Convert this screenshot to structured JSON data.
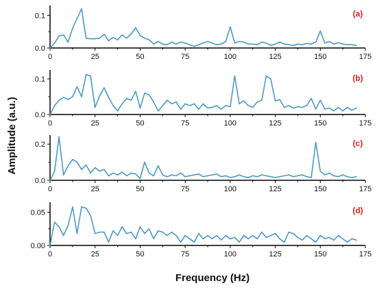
{
  "figure": {
    "xlabel": "Frequency (Hz)",
    "ylabel": "Amplitude (a.u.)",
    "line_color": "#4a98c9",
    "label_color": "#e02222",
    "axis_color": "#000000"
  },
  "chart_data": [
    {
      "type": "line",
      "label": "(a)",
      "xlim": [
        0,
        175
      ],
      "ylim": [
        0,
        0.13
      ],
      "xticks": [
        "0",
        "25",
        "50",
        "75",
        "100",
        "125",
        "150",
        "175"
      ],
      "yticks": [
        {
          "value": 0.0,
          "label": "0.0"
        },
        {
          "value": 0.1,
          "label": "0.1"
        }
      ],
      "series": [
        {
          "x": [
            0,
            2.5,
            5,
            7.5,
            10,
            12.5,
            15,
            17.5,
            20,
            22.5,
            25,
            27.5,
            30,
            32.5,
            35,
            37.5,
            40,
            42.5,
            45,
            47.5,
            50,
            52.5,
            55,
            57.5,
            60,
            62.5,
            65,
            67.5,
            70,
            72.5,
            75,
            77.5,
            80,
            82.5,
            85,
            87.5,
            90,
            92.5,
            95,
            97.5,
            100,
            102.5,
            105,
            107.5,
            110,
            112.5,
            115,
            117.5,
            120,
            122.5,
            125,
            127.5,
            130,
            132.5,
            135,
            137.5,
            140,
            142.5,
            145,
            147.5,
            150,
            152.5,
            155,
            157.5,
            160,
            162.5,
            165,
            167.5,
            170
          ],
          "y": [
            0.0,
            0.015,
            0.037,
            0.04,
            0.018,
            0.06,
            0.09,
            0.12,
            0.03,
            0.028,
            0.028,
            0.03,
            0.042,
            0.022,
            0.032,
            0.025,
            0.04,
            0.03,
            0.043,
            0.062,
            0.038,
            0.03,
            0.025,
            0.012,
            0.02,
            0.012,
            0.01,
            0.018,
            0.012,
            0.018,
            0.015,
            0.01,
            0.005,
            0.01,
            0.015,
            0.02,
            0.015,
            0.01,
            0.012,
            0.02,
            0.065,
            0.015,
            0.02,
            0.018,
            0.012,
            0.012,
            0.01,
            0.018,
            0.015,
            0.008,
            0.012,
            0.018,
            0.012,
            0.01,
            0.008,
            0.012,
            0.01,
            0.014,
            0.012,
            0.018,
            0.052,
            0.015,
            0.02,
            0.012,
            0.016,
            0.012,
            0.01,
            0.01,
            0.008
          ]
        }
      ]
    },
    {
      "type": "line",
      "label": "(b)",
      "xlim": [
        0,
        175
      ],
      "ylim": [
        0,
        0.125
      ],
      "xticks": [
        "0",
        "25",
        "50",
        "75",
        "100",
        "125",
        "150",
        "175"
      ],
      "yticks": [
        {
          "value": 0.0,
          "label": "0.0"
        },
        {
          "value": 0.1,
          "label": "0.1"
        }
      ],
      "series": [
        {
          "x": [
            0,
            2.5,
            5,
            7.5,
            10,
            12.5,
            15,
            17.5,
            20,
            22.5,
            25,
            27.5,
            30,
            32.5,
            35,
            37.5,
            40,
            42.5,
            45,
            47.5,
            50,
            52.5,
            55,
            57.5,
            60,
            62.5,
            65,
            67.5,
            70,
            72.5,
            75,
            77.5,
            80,
            82.5,
            85,
            87.5,
            90,
            92.5,
            95,
            97.5,
            100,
            102.5,
            105,
            107.5,
            110,
            112.5,
            115,
            117.5,
            120,
            122.5,
            125,
            127.5,
            130,
            132.5,
            135,
            137.5,
            140,
            142.5,
            145,
            147.5,
            150,
            152.5,
            155,
            157.5,
            160,
            162.5,
            165,
            167.5,
            170
          ],
          "y": [
            0.0,
            0.025,
            0.04,
            0.048,
            0.042,
            0.05,
            0.078,
            0.05,
            0.112,
            0.108,
            0.02,
            0.052,
            0.075,
            0.048,
            0.025,
            0.01,
            0.03,
            0.045,
            0.04,
            0.065,
            0.018,
            0.06,
            0.055,
            0.035,
            0.01,
            0.025,
            0.04,
            0.03,
            0.035,
            0.015,
            0.03,
            0.025,
            0.03,
            0.015,
            0.03,
            0.018,
            0.02,
            0.025,
            0.015,
            0.025,
            0.022,
            0.108,
            0.03,
            0.038,
            0.025,
            0.02,
            0.035,
            0.04,
            0.108,
            0.1,
            0.038,
            0.042,
            0.02,
            0.025,
            0.018,
            0.022,
            0.02,
            0.025,
            0.045,
            0.015,
            0.04,
            0.015,
            0.018,
            0.01,
            0.02,
            0.01,
            0.02,
            0.012,
            0.018
          ]
        }
      ]
    },
    {
      "type": "line",
      "label": "(c)",
      "xlim": [
        0,
        175
      ],
      "ylim": [
        0,
        0.25
      ],
      "xticks": [
        "0",
        "25",
        "50",
        "75",
        "100",
        "125",
        "150",
        "175"
      ],
      "yticks": [
        {
          "value": 0.0,
          "label": "0.0"
        },
        {
          "value": 0.2,
          "label": "0.2"
        }
      ],
      "series": [
        {
          "x": [
            0,
            2.5,
            5,
            7.5,
            10,
            12.5,
            15,
            17.5,
            20,
            22.5,
            25,
            27.5,
            30,
            32.5,
            35,
            37.5,
            40,
            42.5,
            45,
            47.5,
            50,
            52.5,
            55,
            57.5,
            60,
            62.5,
            65,
            67.5,
            70,
            72.5,
            75,
            77.5,
            80,
            82.5,
            85,
            87.5,
            90,
            92.5,
            95,
            97.5,
            100,
            102.5,
            105,
            107.5,
            110,
            112.5,
            115,
            117.5,
            120,
            122.5,
            125,
            127.5,
            130,
            132.5,
            135,
            137.5,
            140,
            142.5,
            145,
            147.5,
            150,
            152.5,
            155,
            157.5,
            160,
            162.5,
            165,
            167.5,
            170
          ],
          "y": [
            0.0,
            0.05,
            0.24,
            0.03,
            0.08,
            0.115,
            0.1,
            0.06,
            0.085,
            0.04,
            0.07,
            0.05,
            0.06,
            0.025,
            0.04,
            0.03,
            0.045,
            0.025,
            0.04,
            0.035,
            0.01,
            0.1,
            0.04,
            0.025,
            0.08,
            0.03,
            0.02,
            0.03,
            0.025,
            0.04,
            0.02,
            0.025,
            0.03,
            0.035,
            0.02,
            0.025,
            0.03,
            0.035,
            0.02,
            0.025,
            0.015,
            0.02,
            0.03,
            0.02,
            0.015,
            0.025,
            0.02,
            0.03,
            0.025,
            0.02,
            0.015,
            0.02,
            0.025,
            0.03,
            0.02,
            0.025,
            0.03,
            0.02,
            0.015,
            0.21,
            0.05,
            0.03,
            0.04,
            0.025,
            0.02,
            0.03,
            0.02,
            0.015,
            0.02
          ]
        }
      ]
    },
    {
      "type": "line",
      "label": "(d)",
      "xlim": [
        0,
        175
      ],
      "ylim": [
        0,
        0.065
      ],
      "xticks": [
        "0",
        "25",
        "50",
        "75",
        "100",
        "125",
        "150",
        "175"
      ],
      "yticks": [
        {
          "value": 0.0,
          "label": "0.00"
        },
        {
          "value": 0.05,
          "label": "0.05"
        }
      ],
      "series": [
        {
          "x": [
            0,
            2.5,
            5,
            7.5,
            10,
            12.5,
            15,
            17.5,
            20,
            22.5,
            25,
            27.5,
            30,
            32.5,
            35,
            37.5,
            40,
            42.5,
            45,
            47.5,
            50,
            52.5,
            55,
            57.5,
            60,
            62.5,
            65,
            67.5,
            70,
            72.5,
            75,
            77.5,
            80,
            82.5,
            85,
            87.5,
            90,
            92.5,
            95,
            97.5,
            100,
            102.5,
            105,
            107.5,
            110,
            112.5,
            115,
            117.5,
            120,
            122.5,
            125,
            127.5,
            130,
            132.5,
            135,
            137.5,
            140,
            142.5,
            145,
            147.5,
            150,
            152.5,
            155,
            157.5,
            160,
            162.5,
            165,
            167.5,
            170
          ],
          "y": [
            0.0,
            0.035,
            0.028,
            0.015,
            0.03,
            0.058,
            0.018,
            0.058,
            0.056,
            0.045,
            0.018,
            0.02,
            0.02,
            0.005,
            0.022,
            0.015,
            0.028,
            0.018,
            0.02,
            0.01,
            0.028,
            0.018,
            0.025,
            0.01,
            0.022,
            0.02,
            0.015,
            0.02,
            0.015,
            0.005,
            0.015,
            0.01,
            0.005,
            0.018,
            0.01,
            0.015,
            0.01,
            0.015,
            0.008,
            0.015,
            0.01,
            0.012,
            0.005,
            0.015,
            0.01,
            0.015,
            0.01,
            0.02,
            0.012,
            0.015,
            0.018,
            0.01,
            0.005,
            0.02,
            0.018,
            0.012,
            0.008,
            0.015,
            0.01,
            0.005,
            0.015,
            0.01,
            0.012,
            0.008,
            0.015,
            0.01,
            0.005,
            0.01,
            0.008
          ]
        }
      ]
    }
  ]
}
